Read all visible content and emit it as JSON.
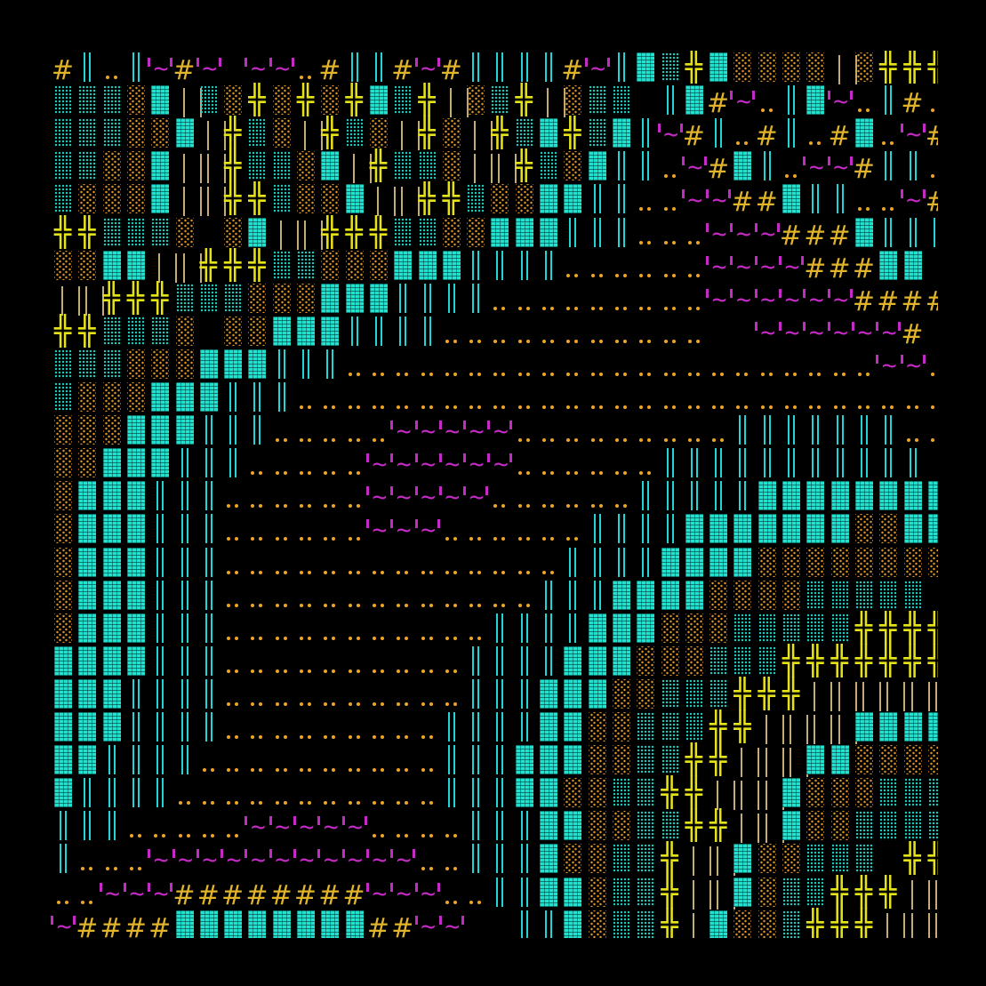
{
  "legend": {
    "H": {
      "glyph": "#",
      "name": "hash",
      "color": "#e2b42a"
    },
    "V": {
      "glyph": "║",
      "name": "double-bar",
      "color": "#22d4d4"
    },
    ".": {
      "glyph": "..",
      "name": "dots",
      "color": "#eda526"
    },
    "B": {
      "glyph": "▓",
      "name": "dense-block",
      "color": "#22e2cf"
    },
    "c": {
      "glyph": "▒",
      "name": "cyan-shade",
      "color": "#1fcfc0"
    },
    "o": {
      "glyph": "░",
      "name": "orange-shade",
      "color": "#d8922c"
    },
    "X": {
      "glyph": "╬",
      "name": "cross",
      "color": "#e6e21a"
    },
    "T": {
      "glyph": "|",
      "name": "tan-bars",
      "color": "#c4ab78"
    },
    "M": {
      "glyph": "'~'",
      "name": "tilde",
      "color": "#c42ac4"
    },
    " ": {
      "glyph": " ",
      "name": "empty",
      "color": "#000000"
    }
  },
  "rows": [
    "HV.VMHM MM.HVVHMHVVVVHMVBcXBooooToXXX",
    "cccoBTcoXoXoXBcXTocXTocc VBHM.VBM.VH.c",
    "cccooBTXcoTXcoTXoTXcBXcBVMHV.HV.HB.MH",
    "ccooBTTXccoBTXccoTTXcoBVV.MHBV.MMHVV.",
    "coooBTTXXcooBTTXXcooBBVV..MMHHBVV..MH",
    "XXccco oBTTXXXccooBBBVVV...MMMHHHBVVV.",
    "ooBBTTXXXccoooBBBVVVV......MMMMHHHBB ",
    "TTXXXcccoooBBBVVVV.........MMMMMMHHHH",
    "XXccco ooBBBVVVV...........  MMMMMMH",
    "cccoooBBBVVV......................MM.",
    "coooBBBVVV...........................",
    "oooBBBVVV.....MMMMM.........VVVVVVV..",
    "ooBBBVVV.....MMMMMM......VVVVVVVVVVV ",
    "oBBBVVV......MMMMM......VVVVVBBBBBBBB",
    "oBBBVVV......MMM......VVVVBBBBBBBooBB",
    "oBBBVVV..............VVVVBBBBoooooooo",
    "oBBBVVV.............VVVBBBBooooccccc c",
    "oBBBVVV...........VVVVBBBooocccccXXXX",
    "BBBBVVV..........VVVVBBBooocccXXXXXXX",
    "BBBVVVV..........VVVBBBoocccXXXTTTTTT",
    "BBBVVVV.........VVVVBBoocccXXTTTTBBBB",
    "BBVVVV..........VVVBBBooccXXTTTBBoooo",
    "BVVVV...........VVVBBooccXXTTTBoooccc",
    "VVV.....MMMMM....VVVBBooccXXTTBooccccc",
    "V...MMMMMMMMMMM..VVVBooccXTTBooccc XXX",
    "..MMMHHHHHHHHMMM..VVBBoccXTTBoccXXXTT",
    "MHHHHBBBBBBBBHHMM  VVBoccXTBoocXXXTTT"
  ]
}
